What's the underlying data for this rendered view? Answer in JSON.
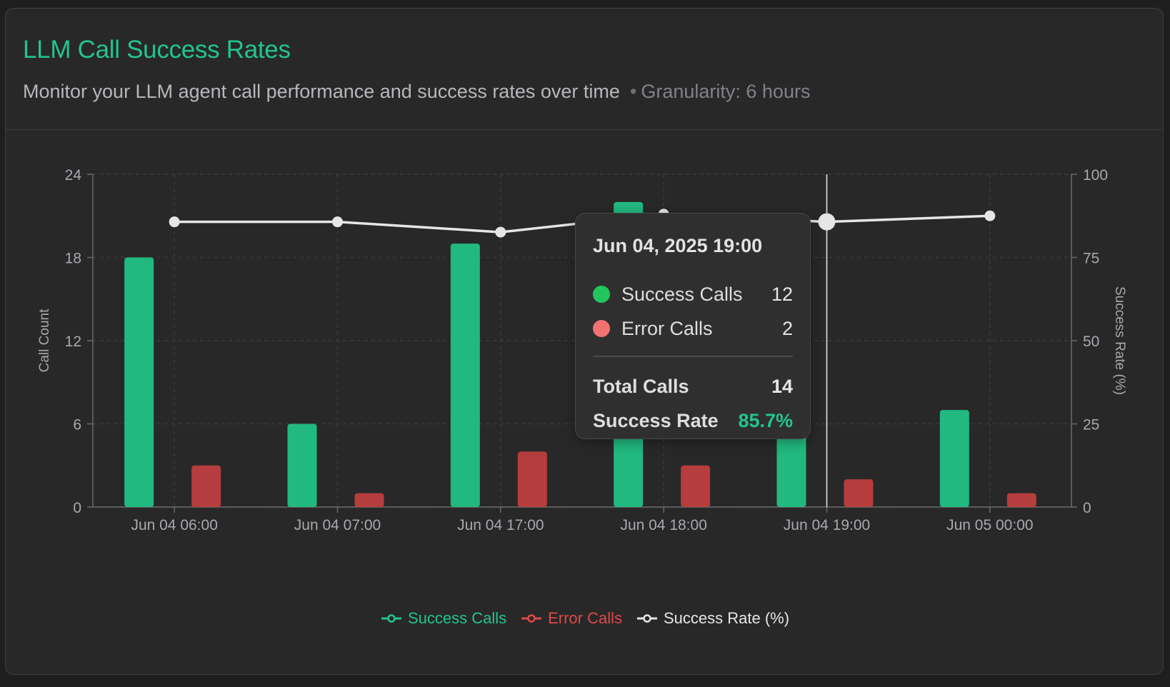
{
  "header": {
    "title": "LLM Call Success Rates",
    "subtitle": "Monitor your LLM agent call performance and success rates over time",
    "granularity": "Granularity: 6 hours"
  },
  "tooltip": {
    "title": "Jun 04, 2025 19:00",
    "success_label": "Success Calls",
    "success_value": "12",
    "error_label": "Error Calls",
    "error_value": "2",
    "total_label": "Total Calls",
    "total_value": "14",
    "rate_label": "Success Rate",
    "rate_value": "85.7%"
  },
  "legend": [
    {
      "label": "Success Calls",
      "color": "#22c58b"
    },
    {
      "label": "Error Calls",
      "color": "#e04848"
    },
    {
      "label": "Success Rate (%)",
      "color": "#e6e6e6"
    }
  ],
  "colors": {
    "success": "#22b981",
    "error": "#b53d3d",
    "rate": "#e6e6e6",
    "axis_text": "#a8a8b0",
    "grid": "#3a3a3a"
  },
  "chart_data": {
    "type": "bar",
    "categories": [
      "Jun 04 06:00",
      "Jun 04 07:00",
      "Jun 04 17:00",
      "Jun 04 18:00",
      "Jun 04 19:00",
      "Jun 05 00:00"
    ],
    "series": [
      {
        "name": "Success Calls",
        "type": "bar",
        "axis": "left",
        "values": [
          18,
          6,
          19,
          22,
          12,
          7
        ]
      },
      {
        "name": "Error Calls",
        "type": "bar",
        "axis": "left",
        "values": [
          3,
          1,
          4,
          3,
          2,
          1
        ]
      },
      {
        "name": "Success Rate (%)",
        "type": "line",
        "axis": "right",
        "values": [
          85.7,
          85.7,
          82.6,
          88,
          85.7,
          87.5
        ]
      }
    ],
    "ylabel": "Call Count",
    "y2label": "Success Rate (%)",
    "ylim": [
      0,
      24
    ],
    "y2lim": [
      0,
      100
    ],
    "yticks": [
      0,
      6,
      12,
      18,
      24
    ],
    "y2ticks": [
      0,
      25,
      50,
      75,
      100
    ],
    "grid": true,
    "legend": "bottom-center",
    "highlighted_category": "Jun 04 19:00"
  }
}
